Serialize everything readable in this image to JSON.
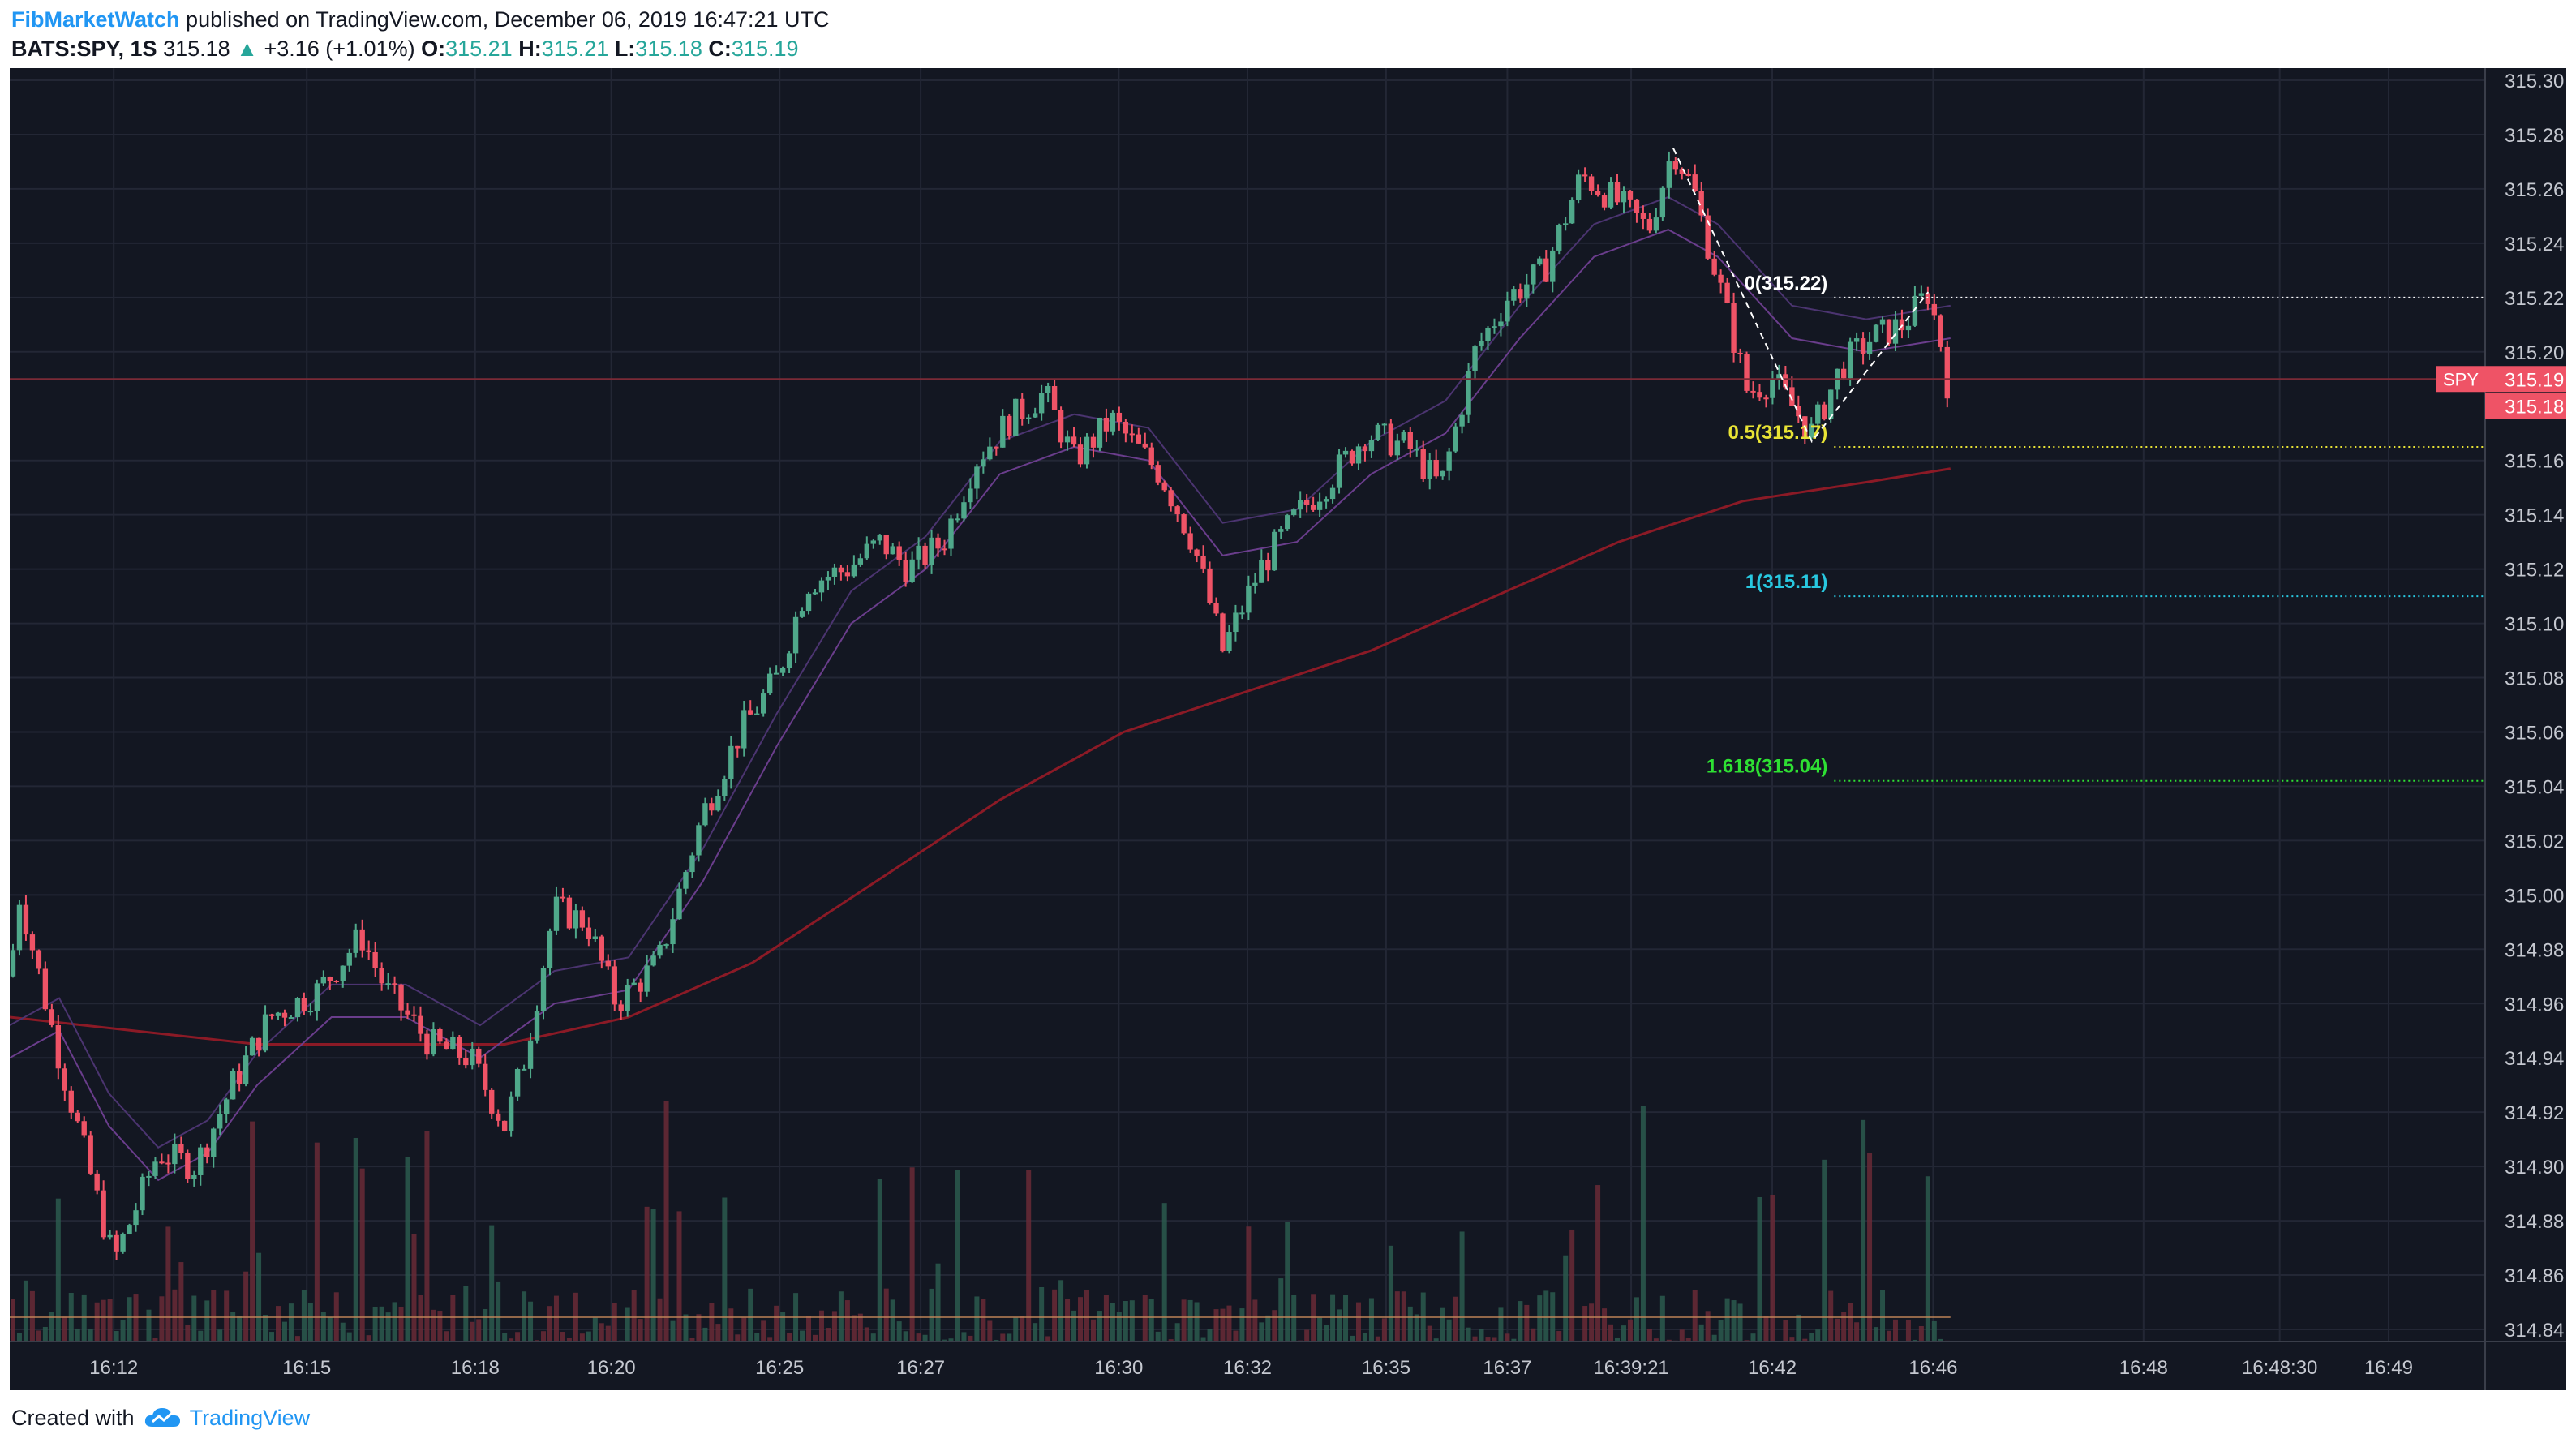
{
  "header": {
    "publisher": "FibMarketWatch",
    "published_text": "published on TradingView.com, December 06, 2019 16:47:21 UTC",
    "symbol": "BATS:SPY, 1S",
    "last_price": "315.18",
    "change_arrow": "▲",
    "change": "+3.16 (+1.01%)",
    "o_label": "O:",
    "o_value": "315.21",
    "h_label": "H:",
    "h_value": "315.21",
    "l_label": "L:",
    "l_value": "315.18",
    "c_label": "C:",
    "c_value": "315.19"
  },
  "footer": {
    "created_with": "Created with",
    "brand": "TradingView"
  },
  "colors": {
    "background": "#131722",
    "grid": "#232735",
    "up": "#4fa88a",
    "down": "#ef5366",
    "ma_long": "#8b1a26",
    "ma_short": "#6a3d8c",
    "fib_zero": "#ffffff",
    "fib_half": "#e8e335",
    "fib_one": "#28c8e0",
    "fib_1618": "#2ee033",
    "axis_text": "#c5c8d0"
  },
  "chart_data": {
    "type": "candlestick",
    "symbol": "SPY",
    "interval": "1S",
    "ylim": [
      314.84,
      315.3
    ],
    "y_ticks": [
      "315.30",
      "315.28",
      "315.26",
      "315.24",
      "315.22",
      "315.20",
      "315.16",
      "315.14",
      "315.12",
      "315.10",
      "315.08",
      "315.06",
      "315.04",
      "315.02",
      "315.00",
      "314.98",
      "314.96",
      "314.94",
      "314.92",
      "314.90",
      "314.88",
      "314.86",
      "314.84"
    ],
    "x_ticks": [
      "16:12",
      "16:15",
      "16:18",
      "16:20",
      "16:25",
      "16:27",
      "16:30",
      "16:32",
      "16:35",
      "16:37",
      "16:39:21",
      "16:42",
      "16:46",
      "16:48",
      "16:48:30",
      "16:49"
    ],
    "price_labels": [
      {
        "name": "SPY",
        "value": "315.19",
        "color": "#ef5366"
      },
      {
        "name": "",
        "value": "315.18",
        "color": "#ef5366"
      }
    ],
    "fibonacci": [
      {
        "label": "0(315.22)",
        "value": 315.22,
        "color": "#ffffff"
      },
      {
        "label": "0.5(315.17)",
        "value": 315.165,
        "color": "#e8e335"
      },
      {
        "label": "1(315.11)",
        "value": 315.11,
        "color": "#28c8e0"
      },
      {
        "label": "1.618(315.04)",
        "value": 315.042,
        "color": "#2ee033"
      }
    ],
    "swing_points": [
      {
        "x": 0.672,
        "y": 315.275
      },
      {
        "x": 0.728,
        "y": 315.167
      },
      {
        "x": 0.775,
        "y": 315.222
      }
    ],
    "price_path": [
      {
        "x": 0.0,
        "y": 314.97
      },
      {
        "x": 0.004,
        "y": 315.0
      },
      {
        "x": 0.02,
        "y": 314.94
      },
      {
        "x": 0.042,
        "y": 314.865
      },
      {
        "x": 0.06,
        "y": 314.905
      },
      {
        "x": 0.075,
        "y": 314.9
      },
      {
        "x": 0.09,
        "y": 314.93
      },
      {
        "x": 0.105,
        "y": 314.955
      },
      {
        "x": 0.125,
        "y": 314.965
      },
      {
        "x": 0.142,
        "y": 314.985
      },
      {
        "x": 0.152,
        "y": 314.965
      },
      {
        "x": 0.17,
        "y": 314.945
      },
      {
        "x": 0.186,
        "y": 314.94
      },
      {
        "x": 0.2,
        "y": 314.915
      },
      {
        "x": 0.208,
        "y": 314.94
      },
      {
        "x": 0.22,
        "y": 314.995
      },
      {
        "x": 0.233,
        "y": 314.99
      },
      {
        "x": 0.245,
        "y": 314.96
      },
      {
        "x": 0.262,
        "y": 314.975
      },
      {
        "x": 0.28,
        "y": 315.03
      },
      {
        "x": 0.295,
        "y": 315.06
      },
      {
        "x": 0.31,
        "y": 315.08
      },
      {
        "x": 0.322,
        "y": 315.115
      },
      {
        "x": 0.338,
        "y": 315.12
      },
      {
        "x": 0.352,
        "y": 315.13
      },
      {
        "x": 0.363,
        "y": 315.12
      },
      {
        "x": 0.377,
        "y": 315.13
      },
      {
        "x": 0.39,
        "y": 315.16
      },
      {
        "x": 0.404,
        "y": 315.175
      },
      {
        "x": 0.418,
        "y": 315.185
      },
      {
        "x": 0.43,
        "y": 315.16
      },
      {
        "x": 0.445,
        "y": 315.175
      },
      {
        "x": 0.465,
        "y": 315.155
      },
      {
        "x": 0.478,
        "y": 315.13
      },
      {
        "x": 0.49,
        "y": 315.09
      },
      {
        "x": 0.505,
        "y": 315.12
      },
      {
        "x": 0.52,
        "y": 315.14
      },
      {
        "x": 0.535,
        "y": 315.155
      },
      {
        "x": 0.548,
        "y": 315.17
      },
      {
        "x": 0.565,
        "y": 315.165
      },
      {
        "x": 0.578,
        "y": 315.15
      },
      {
        "x": 0.592,
        "y": 315.2
      },
      {
        "x": 0.605,
        "y": 315.22
      },
      {
        "x": 0.62,
        "y": 315.23
      },
      {
        "x": 0.635,
        "y": 315.265
      },
      {
        "x": 0.65,
        "y": 315.255
      },
      {
        "x": 0.662,
        "y": 315.245
      },
      {
        "x": 0.672,
        "y": 315.275
      },
      {
        "x": 0.68,
        "y": 315.26
      },
      {
        "x": 0.692,
        "y": 315.22
      },
      {
        "x": 0.702,
        "y": 315.185
      },
      {
        "x": 0.712,
        "y": 315.19
      },
      {
        "x": 0.72,
        "y": 315.18
      },
      {
        "x": 0.728,
        "y": 315.17
      },
      {
        "x": 0.74,
        "y": 315.195
      },
      {
        "x": 0.752,
        "y": 315.205
      },
      {
        "x": 0.765,
        "y": 315.21
      },
      {
        "x": 0.775,
        "y": 315.222
      },
      {
        "x": 0.781,
        "y": 315.2
      },
      {
        "x": 0.784,
        "y": 315.18
      }
    ],
    "ma_long_path": [
      {
        "x": 0.0,
        "y": 314.955
      },
      {
        "x": 0.05,
        "y": 314.95
      },
      {
        "x": 0.1,
        "y": 314.945
      },
      {
        "x": 0.15,
        "y": 314.945
      },
      {
        "x": 0.2,
        "y": 314.945
      },
      {
        "x": 0.25,
        "y": 314.955
      },
      {
        "x": 0.3,
        "y": 314.975
      },
      {
        "x": 0.35,
        "y": 315.005
      },
      {
        "x": 0.4,
        "y": 315.035
      },
      {
        "x": 0.45,
        "y": 315.06
      },
      {
        "x": 0.5,
        "y": 315.075
      },
      {
        "x": 0.55,
        "y": 315.09
      },
      {
        "x": 0.6,
        "y": 315.11
      },
      {
        "x": 0.65,
        "y": 315.13
      },
      {
        "x": 0.7,
        "y": 315.145
      },
      {
        "x": 0.75,
        "y": 315.152
      },
      {
        "x": 0.784,
        "y": 315.157
      }
    ],
    "ma_short_path": [
      {
        "x": 0.0,
        "y": 314.94
      },
      {
        "x": 0.02,
        "y": 314.95
      },
      {
        "x": 0.04,
        "y": 314.915
      },
      {
        "x": 0.06,
        "y": 314.895
      },
      {
        "x": 0.08,
        "y": 314.905
      },
      {
        "x": 0.1,
        "y": 314.93
      },
      {
        "x": 0.13,
        "y": 314.955
      },
      {
        "x": 0.16,
        "y": 314.955
      },
      {
        "x": 0.19,
        "y": 314.94
      },
      {
        "x": 0.22,
        "y": 314.96
      },
      {
        "x": 0.25,
        "y": 314.965
      },
      {
        "x": 0.28,
        "y": 315.005
      },
      {
        "x": 0.31,
        "y": 315.055
      },
      {
        "x": 0.34,
        "y": 315.1
      },
      {
        "x": 0.37,
        "y": 315.12
      },
      {
        "x": 0.4,
        "y": 315.155
      },
      {
        "x": 0.43,
        "y": 315.165
      },
      {
        "x": 0.46,
        "y": 315.16
      },
      {
        "x": 0.49,
        "y": 315.125
      },
      {
        "x": 0.52,
        "y": 315.13
      },
      {
        "x": 0.55,
        "y": 315.155
      },
      {
        "x": 0.58,
        "y": 315.17
      },
      {
        "x": 0.61,
        "y": 315.205
      },
      {
        "x": 0.64,
        "y": 315.235
      },
      {
        "x": 0.67,
        "y": 315.245
      },
      {
        "x": 0.69,
        "y": 315.235
      },
      {
        "x": 0.72,
        "y": 315.205
      },
      {
        "x": 0.75,
        "y": 315.2
      },
      {
        "x": 0.784,
        "y": 315.205
      }
    ],
    "volume_ylim": [
      0,
      100
    ],
    "volume_avg": 20,
    "last_x": 0.784
  }
}
